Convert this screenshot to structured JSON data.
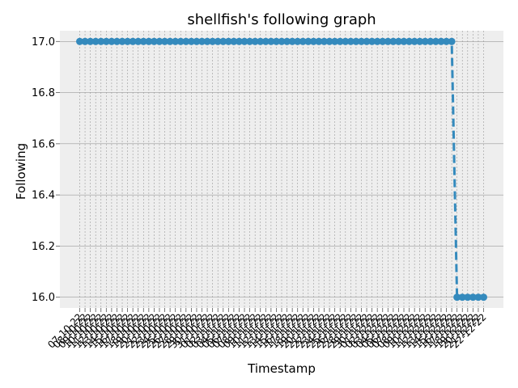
{
  "chart_data": {
    "type": "line",
    "title": "shellfish's following graph",
    "xlabel": "Timestamp",
    "ylabel": "Following",
    "ylim": [
      15.958,
      17.042
    ],
    "yticks": [
      16.0,
      16.2,
      16.4,
      16.6,
      16.8,
      17.0
    ],
    "ytick_labels": [
      "16.0",
      "16.2",
      "16.4",
      "16.6",
      "16.8",
      "17.0"
    ],
    "grid": true,
    "line_style": "dashed",
    "marker": "circle",
    "color": "#348ABD",
    "x": [
      "07-10-22",
      "08-10-22",
      "09-10-22",
      "10-10-22",
      "11-10-22",
      "12-10-22",
      "13-10-22",
      "14-10-22",
      "15-10-22",
      "16-10-22",
      "17-10-22",
      "18-10-22",
      "19-10-22",
      "20-10-22",
      "21-10-22",
      "22-10-22",
      "23-10-22",
      "24-10-22",
      "25-10-22",
      "26-10-22",
      "27-10-22",
      "28-10-22",
      "29-10-22",
      "30-10-22",
      "31-10-22",
      "01-11-22",
      "02-11-22",
      "03-11-22",
      "04-11-22",
      "05-11-22",
      "06-11-22",
      "07-11-22",
      "08-11-22",
      "09-11-22",
      "10-11-22",
      "11-11-22",
      "12-11-22",
      "13-11-22",
      "14-11-22",
      "15-11-22",
      "16-11-22",
      "17-11-22",
      "18-11-22",
      "19-11-22",
      "20-11-22",
      "21-11-22",
      "22-11-22",
      "23-11-22",
      "24-11-22",
      "25-11-22",
      "26-11-22",
      "27-11-22",
      "28-11-22",
      "29-11-22",
      "30-11-22",
      "01-12-22",
      "02-12-22",
      "03-12-22",
      "04-12-22",
      "05-12-22",
      "06-12-22",
      "07-12-22",
      "08-12-22",
      "09-12-22",
      "10-12-22",
      "11-12-22",
      "12-12-22",
      "13-12-22",
      "14-12-22",
      "15-12-22",
      "16-12-22",
      "17-12-22",
      "18-12-22",
      "19-12-22",
      "20-12-22",
      "21-12-22",
      "22-12-22"
    ],
    "values": [
      17,
      17,
      17,
      17,
      17,
      17,
      17,
      17,
      17,
      17,
      17,
      17,
      17,
      17,
      17,
      17,
      17,
      17,
      17,
      17,
      17,
      17,
      17,
      17,
      17,
      17,
      17,
      17,
      17,
      17,
      17,
      17,
      17,
      17,
      17,
      17,
      17,
      17,
      17,
      17,
      17,
      17,
      17,
      17,
      17,
      17,
      17,
      17,
      17,
      17,
      17,
      17,
      17,
      17,
      17,
      17,
      17,
      17,
      17,
      17,
      17,
      17,
      17,
      17,
      17,
      17,
      17,
      17,
      17,
      17,
      17,
      16,
      16,
      16,
      16,
      16,
      16
    ]
  }
}
